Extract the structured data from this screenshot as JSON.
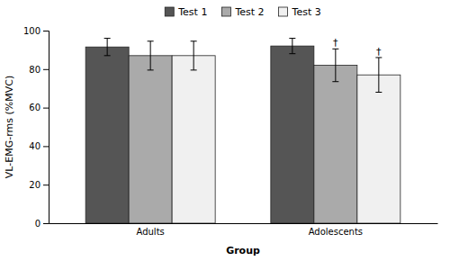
{
  "chart_data": {
    "type": "bar",
    "xlabel": "Group",
    "ylabel": "VL-EMG-rms (%MVC)",
    "categories": [
      "Adults",
      "Adolescents"
    ],
    "series": [
      {
        "name": "Test 1",
        "color": "#555555",
        "values": [
          91.5,
          92.0
        ],
        "errors": [
          4.5,
          4.0
        ]
      },
      {
        "name": "Test 2",
        "color": "#aaaaaa",
        "values": [
          87.0,
          82.0
        ],
        "errors": [
          7.5,
          8.5
        ],
        "annotations": [
          null,
          "†"
        ]
      },
      {
        "name": "Test 3",
        "color": "#f0f0f0",
        "values": [
          87.0,
          77.0
        ],
        "errors": [
          7.5,
          9.0
        ],
        "annotations": [
          null,
          "†"
        ]
      }
    ],
    "ylim": [
      0,
      100
    ],
    "yticks": [
      0,
      20,
      40,
      60,
      80,
      100
    ],
    "grid": false,
    "legend": "top"
  }
}
